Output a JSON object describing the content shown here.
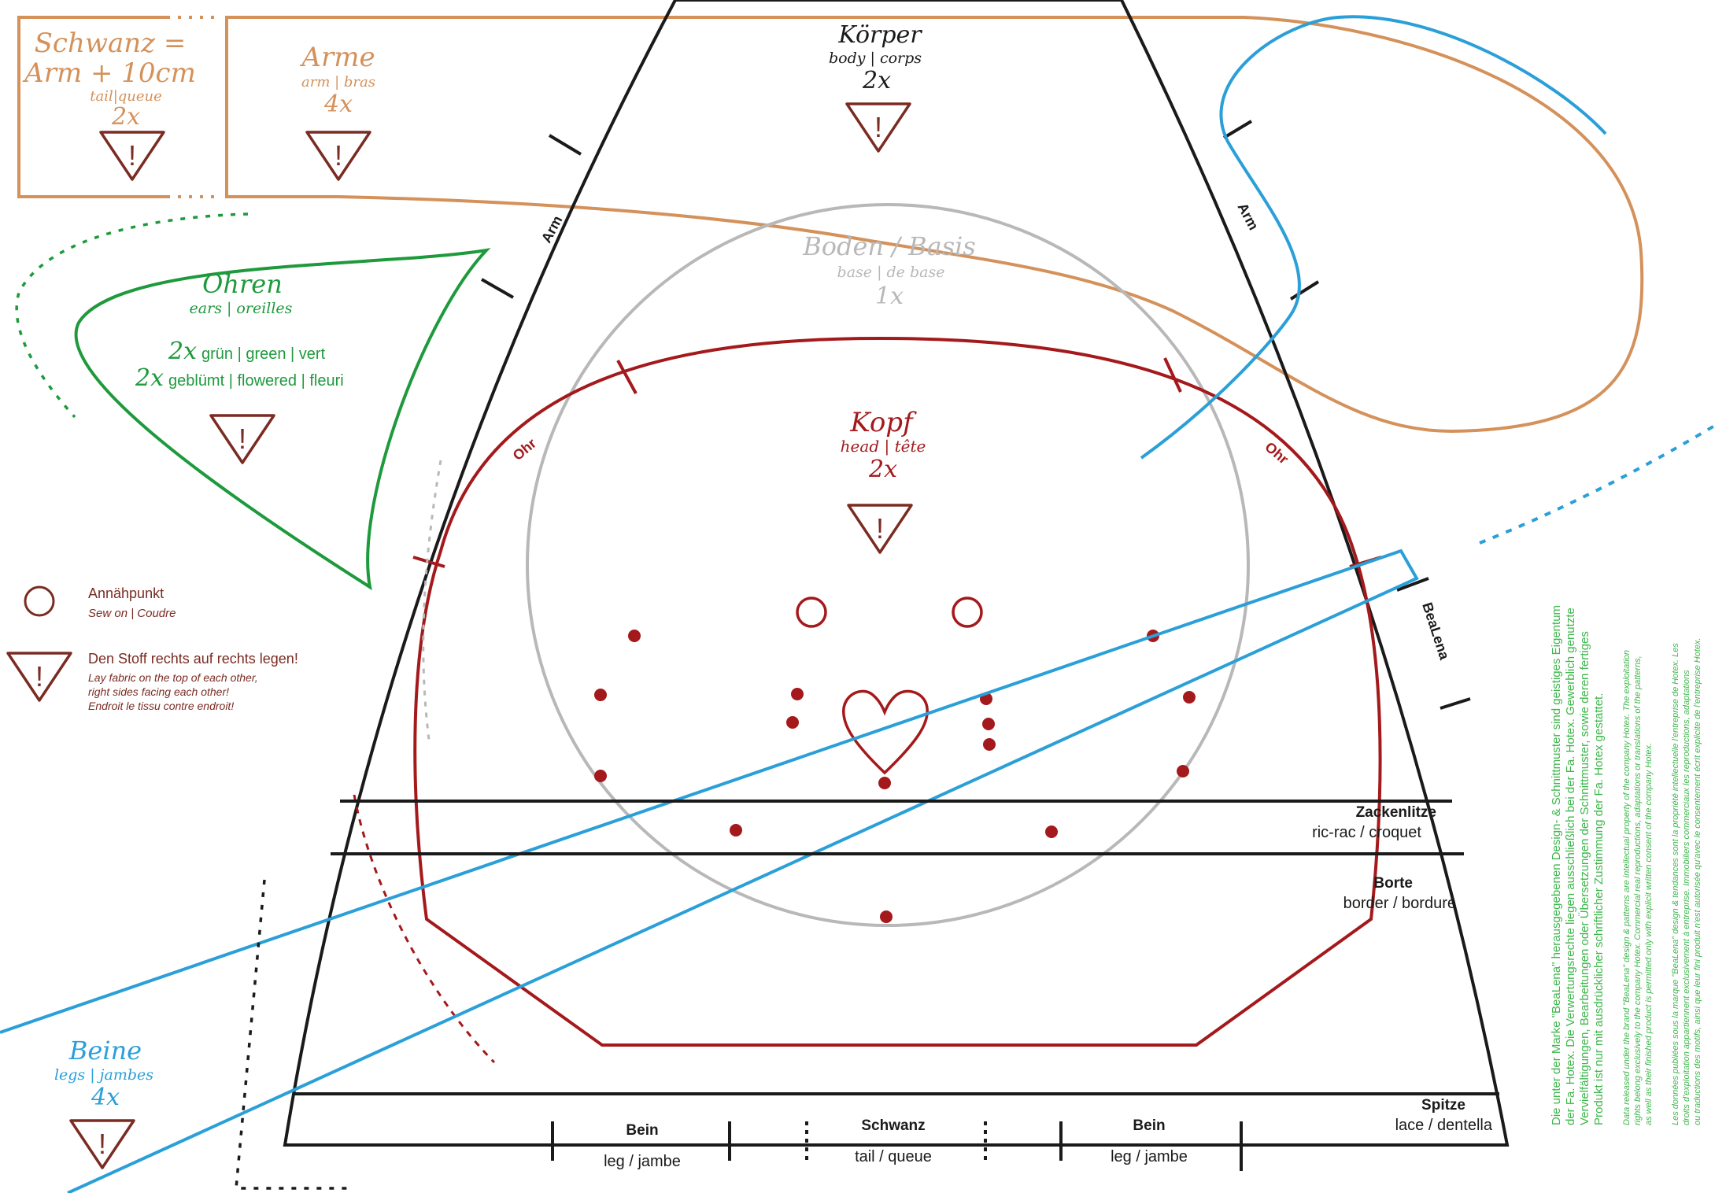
{
  "colors": {
    "tail": "#d4915a",
    "arms": "#d4915a",
    "body": "#1a1a1a",
    "base": "#b8b8b8",
    "head": "#a4191b",
    "ears": "#1e9a3c",
    "legs": "#2a9fd8",
    "warning": "#7a2b22",
    "copyright": "#3cb64a"
  },
  "pieces": {
    "tail": {
      "title": "Schwanz =",
      "title2": "Arm + 10cm",
      "translations": "tail|queue",
      "count": "2x"
    },
    "arms": {
      "title": "Arme",
      "translations": "arm | bras",
      "count": "4x"
    },
    "body": {
      "title": "Körper",
      "translations": "body | corps",
      "count": "2x"
    },
    "base": {
      "title": "Boden / Basis",
      "translations": "base | de base",
      "count": "1x"
    },
    "head": {
      "title": "Kopf",
      "translations": "head | tête",
      "count": "2x"
    },
    "ears": {
      "title": "Ohren",
      "translations": "ears | oreilles",
      "count1": "2x",
      "variant1": "grün | green | vert",
      "count2": "2x",
      "variant2": "geblümt | flowered | fleuri"
    },
    "legs": {
      "title": "Beine",
      "translations": "legs | jambes",
      "count": "4x"
    }
  },
  "marks": {
    "arm_left": "Arm",
    "arm_right": "Arm",
    "ear_left": "Ohr",
    "ear_right": "Ohr",
    "brand_side": "BeaLena"
  },
  "legend": {
    "sew_on_title": "Annähpunkt",
    "sew_on_sub": "Sew on | Coudre",
    "warning_title": "Den Stoff rechts auf rechts legen!",
    "warning_line1": "Lay fabric on the top of each other,",
    "warning_line2": "right sides facing each other!",
    "warning_line3": "Endroit le tissu contre endroit!"
  },
  "strips": {
    "rickrack_title": "Zackenlitze",
    "rickrack_sub": "ric-rac / croquet",
    "border_title": "Borte",
    "border_sub": "border / bordure",
    "lace_title": "Spitze",
    "lace_sub": "lace / dentella"
  },
  "bottom": {
    "leg1_title": "Bein",
    "leg1_sub": "leg / jambe",
    "tail_title": "Schwanz",
    "tail_sub": "tail / queue",
    "leg2_title": "Bein",
    "leg2_sub": "leg / jambe"
  },
  "copyright": {
    "de1": "Die unter der Marke \"BeaLena\" herausgegebenen Design- & Schnittmuster sind geistiges Eigentum",
    "de2": "der Fa. Hotex. Die Verwertungsrechte liegen ausschließlich bei der Fa. Hotex. Gewerblich genutzte",
    "de3": "Vervielfältigungen, Bearbeitungen oder Übersetzungen der Schnittmuster, sowie deren fertiges",
    "de4": "Produkt ist nur mit ausdrücklicher schriftlicher Zustimmung der Fa. Hotex gestattet.",
    "en1": "Data released under the brand \"BeaLena\" design & patterns are intellectual property of the company Hotex. The exploitation",
    "en2": "rights belong exclusively to the company Hotex. Commercial real reproductions, adaptations or translations of the patterns,",
    "en3": "as well as their finished product is permitted only with explicit written consent of the company Hotex.",
    "fr1": "Les données publiées sous la marque \"BeaLena\" design & tendances sont la propriété intellectuelle l'entreprise de Hotex. Les",
    "fr2": "droits d'exploitation appartiennent exclusivement à entreprise. Immobiliers commerciaux les reproductions, adaptations",
    "fr3": "ou traductions des motifs, ainsi que leur fini produit n'est autorisée qu'avec le consentement écrit explicite de l'entreprise Hotex."
  }
}
